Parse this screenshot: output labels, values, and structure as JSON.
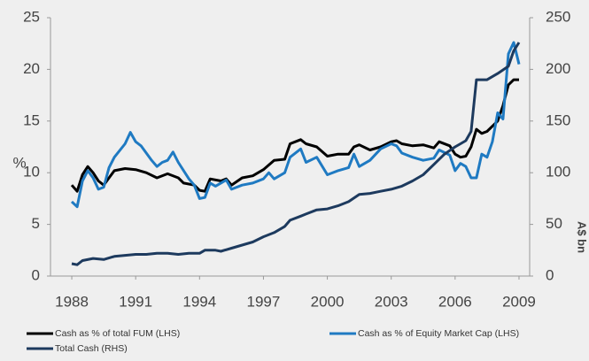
{
  "chart_data": {
    "type": "line",
    "ylabel": "%",
    "y2label": "A$ bn",
    "xlim": [
      1987,
      2009.5
    ],
    "xticks": [
      1988,
      1991,
      1994,
      1997,
      2000,
      2003,
      2006,
      2009
    ],
    "ylim": [
      0,
      25
    ],
    "yticks": [
      0,
      5,
      10,
      15,
      20,
      25
    ],
    "y2lim": [
      0,
      250
    ],
    "y2ticks": [
      0,
      50,
      100,
      150,
      200,
      250
    ],
    "series": [
      {
        "name": "Cash as % of total FUM (LHS)",
        "color": "#000000",
        "x": [
          1988,
          1988.25,
          1988.5,
          1988.75,
          1989,
          1989.25,
          1989.5,
          1989.75,
          1990,
          1990.5,
          1991,
          1991.5,
          1992,
          1992.5,
          1993,
          1993.25,
          1993.75,
          1994,
          1994.25,
          1994.5,
          1995,
          1995.25,
          1995.5,
          1996,
          1996.5,
          1997,
          1997.5,
          1998,
          1998.25,
          1998.75,
          1999,
          1999.5,
          2000,
          2000.5,
          2001,
          2001.25,
          2001.5,
          2002,
          2002.5,
          2003,
          2003.25,
          2003.5,
          2004,
          2004.5,
          2005,
          2005.25,
          2005.75,
          2006,
          2006.25,
          2006.5,
          2006.75,
          2007,
          2007.25,
          2007.5,
          2008,
          2008.25,
          2008.5,
          2008.75,
          2009
        ],
        "values": [
          8.8,
          8.2,
          9.8,
          10.6,
          10,
          9.2,
          8.8,
          9.5,
          10.2,
          10.4,
          10.3,
          10,
          9.5,
          9.9,
          9.5,
          9,
          8.8,
          8.3,
          8.2,
          9.4,
          9.2,
          9.4,
          8.8,
          9.5,
          9.7,
          10.3,
          11.2,
          11.3,
          12.8,
          13.2,
          12.8,
          12.5,
          11.6,
          11.8,
          11.8,
          12.5,
          12.7,
          12.2,
          12.5,
          13,
          13.1,
          12.8,
          12.6,
          12.7,
          12.4,
          13,
          12.6,
          11.8,
          11.5,
          11.6,
          12.5,
          14.2,
          13.8,
          14,
          15,
          16.5,
          18.5,
          19,
          19
        ]
      },
      {
        "name": "Cash as % of Equity Market Cap (LHS)",
        "color": "#1f7ac2",
        "x": [
          1988,
          1988.25,
          1988.5,
          1988.75,
          1989,
          1989.25,
          1989.5,
          1989.75,
          1990,
          1990.5,
          1990.75,
          1991,
          1991.25,
          1991.75,
          1992,
          1992.25,
          1992.5,
          1992.75,
          1993,
          1993.5,
          1993.75,
          1994,
          1994.25,
          1994.5,
          1994.75,
          1995,
          1995.25,
          1995.5,
          1996,
          1996.5,
          1997,
          1997.25,
          1997.5,
          1998,
          1998.25,
          1998.75,
          1999,
          1999.5,
          2000,
          2000.5,
          2001,
          2001.25,
          2001.5,
          2002,
          2002.5,
          2003,
          2003.25,
          2003.5,
          2004,
          2004.5,
          2005,
          2005.25,
          2005.75,
          2006,
          2006.25,
          2006.5,
          2006.75,
          2007,
          2007.25,
          2007.5,
          2007.75,
          2008,
          2008.25,
          2008.5,
          2008.75,
          2009
        ],
        "values": [
          7.2,
          6.7,
          9.2,
          10.2,
          9.5,
          8.4,
          8.6,
          10.5,
          11.5,
          12.8,
          13.9,
          13,
          12.6,
          11.2,
          10.6,
          11,
          11.2,
          12,
          11,
          9.4,
          8.8,
          7.5,
          7.6,
          9,
          8.7,
          9,
          9.3,
          8.4,
          8.8,
          9,
          9.4,
          10,
          9.4,
          10,
          11.5,
          12.3,
          11,
          11.5,
          9.8,
          10.2,
          10.5,
          11.8,
          10.6,
          11.2,
          12.3,
          12.8,
          12.6,
          11.9,
          11.5,
          11.2,
          11.4,
          12.2,
          11.7,
          10.2,
          10.9,
          10.6,
          9.5,
          9.5,
          11.8,
          11.5,
          13,
          15.8,
          15.2,
          21.5,
          22.6,
          20.5
        ]
      },
      {
        "name": "Total Cash (RHS)",
        "color": "#1d3a5e",
        "axis": "y2",
        "x": [
          1988,
          1988.25,
          1988.5,
          1989,
          1989.5,
          1990,
          1990.5,
          1991,
          1991.5,
          1992,
          1992.5,
          1993,
          1993.5,
          1994,
          1994.25,
          1994.75,
          1995,
          1995.5,
          1996,
          1996.5,
          1997,
          1997.5,
          1998,
          1998.25,
          1998.75,
          1999,
          1999.5,
          2000,
          2000.5,
          2001,
          2001.5,
          2002,
          2002.5,
          2003,
          2003.5,
          2004,
          2004.5,
          2005,
          2005.5,
          2006,
          2006.25,
          2006.5,
          2006.75,
          2007,
          2007.5,
          2008,
          2008.5,
          2008.75,
          2009
        ],
        "values": [
          12,
          11,
          15,
          17,
          16,
          19,
          20,
          21,
          21,
          22,
          22,
          21,
          22,
          22,
          25,
          25,
          24,
          27,
          30,
          33,
          38,
          42,
          48,
          54,
          58,
          60,
          64,
          65,
          68,
          72,
          79,
          80,
          82,
          84,
          87,
          92,
          98,
          108,
          118,
          125,
          128,
          131,
          140,
          190,
          190,
          196,
          203,
          218,
          226
        ]
      }
    ]
  }
}
